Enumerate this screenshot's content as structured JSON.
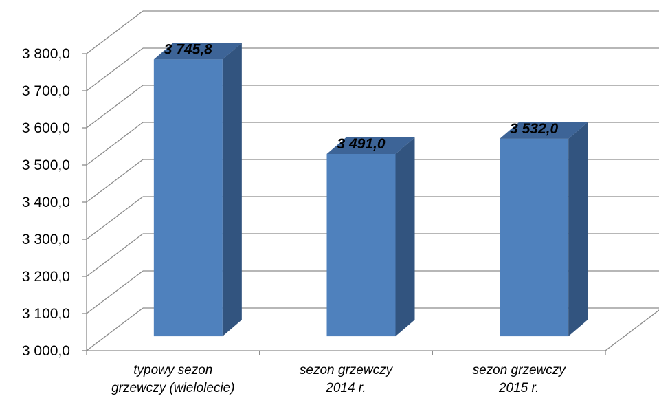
{
  "chart_data": {
    "type": "bar",
    "style": "3d-column",
    "categories": [
      [
        "typowy sezon",
        "grzewczy (wielolecie)"
      ],
      [
        "sezon grzewczy",
        "2014 r."
      ],
      [
        "sezon grzewczy",
        "2015 r."
      ]
    ],
    "values": [
      3745.8,
      3491.0,
      3532.0
    ],
    "data_labels": [
      "3 745,8",
      "3 491,0",
      "3 532,0"
    ],
    "y_ticks": [
      "3 000,0",
      "3 100,0",
      "3 200,0",
      "3 300,0",
      "3 400,0",
      "3 500,0",
      "3 600,0",
      "3 700,0",
      "3 800,0"
    ],
    "ylim": [
      3000,
      3800
    ],
    "grid": true,
    "legend": "none",
    "title": "",
    "xlabel": "",
    "ylabel": "",
    "colors": {
      "bar_front": "#4f81bd",
      "bar_side": "#32547f",
      "bar_top": "#3d6497",
      "gridline": "#8c8c8c"
    }
  }
}
